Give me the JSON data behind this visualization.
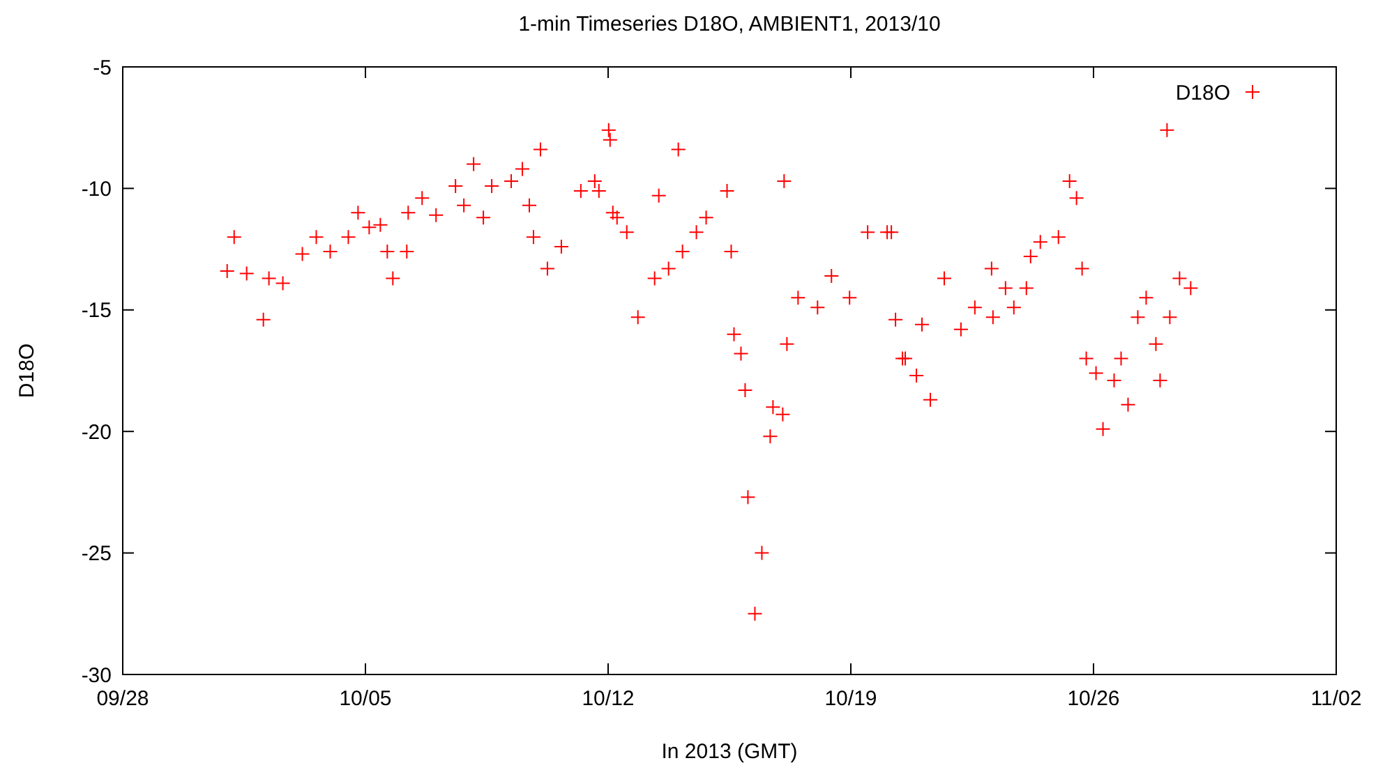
{
  "chart_data": {
    "type": "scatter",
    "title": "1-min Timeseries D18O, AMBIENT1, 2013/10",
    "xlabel": "In 2013 (GMT)",
    "ylabel": "D18O",
    "marker": "cross",
    "legend": "top right",
    "grid": false,
    "xlim": [
      "2013-09-28",
      "2013-11-02"
    ],
    "xticks": [
      {
        "value": "2013-09-28",
        "label": "09/28"
      },
      {
        "value": "2013-10-05",
        "label": "10/05"
      },
      {
        "value": "2013-10-12",
        "label": "10/12"
      },
      {
        "value": "2013-10-19",
        "label": "10/19"
      },
      {
        "value": "2013-10-26",
        "label": "10/26"
      },
      {
        "value": "2013-11-02",
        "label": "11/02"
      }
    ],
    "ylim": [
      -30,
      -5
    ],
    "yticks": [
      -30,
      -25,
      -20,
      -15,
      -10,
      -5
    ],
    "series": [
      {
        "name": "D18O",
        "color": "#ff0000",
        "x": [
          "2013-10-01T00:17",
          "2013-10-01T05:07",
          "2013-10-01T13:47",
          "2013-10-02T01:21",
          "2013-10-02T05:12",
          "2013-10-02T14:50",
          "2013-10-03T04:20",
          "2013-10-03T13:58",
          "2013-10-03T23:37",
          "2013-10-04T12:09",
          "2013-10-04T18:53",
          "2013-10-05T02:36",
          "2013-10-05T10:19",
          "2013-10-05T15:08",
          "2013-10-05T18:59",
          "2013-10-06T04:38",
          "2013-10-06T05:36",
          "2013-10-06T15:14",
          "2013-10-07T00:52",
          "2013-10-07T14:21",
          "2013-10-07T20:08",
          "2013-10-08T02:53",
          "2013-10-08T09:38",
          "2013-10-08T15:26",
          "2013-10-09T04:55",
          "2013-10-09T12:38",
          "2013-10-09T17:27",
          "2013-10-09T20:20",
          "2013-10-10T01:09",
          "2013-10-10T05:59",
          "2013-10-10T15:37",
          "2013-10-11T05:07",
          "2013-10-11T14:44",
          "2013-10-11T17:38",
          "2013-10-12T00:23",
          "2013-10-12T01:21",
          "2013-10-12T03:17",
          "2013-10-12T06:10",
          "2013-10-12T12:55",
          "2013-10-12T20:37",
          "2013-10-13T08:11",
          "2013-10-13T11:05",
          "2013-10-13T17:50",
          "2013-10-14T00:35",
          "2013-10-14T03:29",
          "2013-10-14T13:06",
          "2013-10-14T19:51",
          "2013-10-15T10:19",
          "2013-10-15T13:12",
          "2013-10-15T15:08",
          "2013-10-15T19:57",
          "2013-10-15T22:50",
          "2013-10-16T00:46",
          "2013-10-16T05:36",
          "2013-10-16T10:25",
          "2013-10-16T16:12",
          "2013-10-16T18:07",
          "2013-10-17T00:52",
          "2013-10-17T01:49",
          "2013-10-17T03:46",
          "2013-10-17T11:29",
          "2013-10-18T00:58",
          "2013-10-18T10:36",
          "2013-10-18T23:08",
          "2013-10-19T11:40",
          "2013-10-20T01:09",
          "2013-10-20T04:03",
          "2013-10-20T06:56",
          "2013-10-20T11:46",
          "2013-10-20T13:41",
          "2013-10-20T21:24",
          "2013-10-21T01:15",
          "2013-10-21T07:02",
          "2013-10-21T16:41",
          "2013-10-22T04:14",
          "2013-10-22T13:52",
          "2013-10-23T01:26",
          "2013-10-23T02:24",
          "2013-10-23T11:05",
          "2013-10-23T16:52",
          "2013-10-24T01:32",
          "2013-10-24T04:26",
          "2013-10-24T11:11",
          "2013-10-24T23:43",
          "2013-10-25T07:25",
          "2013-10-25T12:14",
          "2013-10-25T16:05",
          "2013-10-25T18:59",
          "2013-10-26T01:44",
          "2013-10-26T06:33",
          "2013-10-26T14:15",
          "2013-10-26T19:05",
          "2013-10-26T23:54",
          "2013-10-27T06:39",
          "2013-10-27T12:26",
          "2013-10-27T19:11",
          "2013-10-27T22:05",
          "2013-10-28T02:53",
          "2013-10-28T04:49",
          "2013-10-28T11:34",
          "2013-10-28T19:16"
        ],
        "values": [
          -13.4,
          -12.0,
          -13.5,
          -15.4,
          -13.7,
          -13.9,
          -12.7,
          -12.0,
          -12.6,
          -12.0,
          -11.0,
          -11.6,
          -11.5,
          -12.6,
          -13.7,
          -12.6,
          -11.0,
          -10.4,
          -11.1,
          -9.9,
          -10.7,
          -9.0,
          -11.2,
          -9.9,
          -9.7,
          -9.2,
          -10.7,
          -12.0,
          -8.4,
          -13.3,
          -12.4,
          -10.1,
          -9.7,
          -10.1,
          -7.6,
          -8.0,
          -11.0,
          -11.2,
          -11.8,
          -15.3,
          -13.7,
          -10.3,
          -13.3,
          -8.4,
          -12.6,
          -11.8,
          -11.2,
          -10.1,
          -12.6,
          -16.0,
          -16.8,
          -18.3,
          -22.7,
          -27.5,
          -25.0,
          -20.2,
          -19.0,
          -19.3,
          -9.7,
          -16.4,
          -14.5,
          -14.9,
          -13.6,
          -14.5,
          -11.8,
          -11.8,
          -11.8,
          -15.4,
          -17.0,
          -17.0,
          -17.7,
          -15.6,
          -18.7,
          -13.7,
          -15.8,
          -14.9,
          -13.3,
          -15.3,
          -14.1,
          -14.9,
          -14.1,
          -12.8,
          -12.2,
          -12.0,
          -9.7,
          -10.4,
          -13.3,
          -17.0,
          -17.6,
          -19.9,
          -17.9,
          -17.0,
          -18.9,
          -15.3,
          -14.5,
          -16.4,
          -17.9,
          -7.6,
          -15.3,
          -13.7,
          -14.1
        ]
      }
    ]
  }
}
